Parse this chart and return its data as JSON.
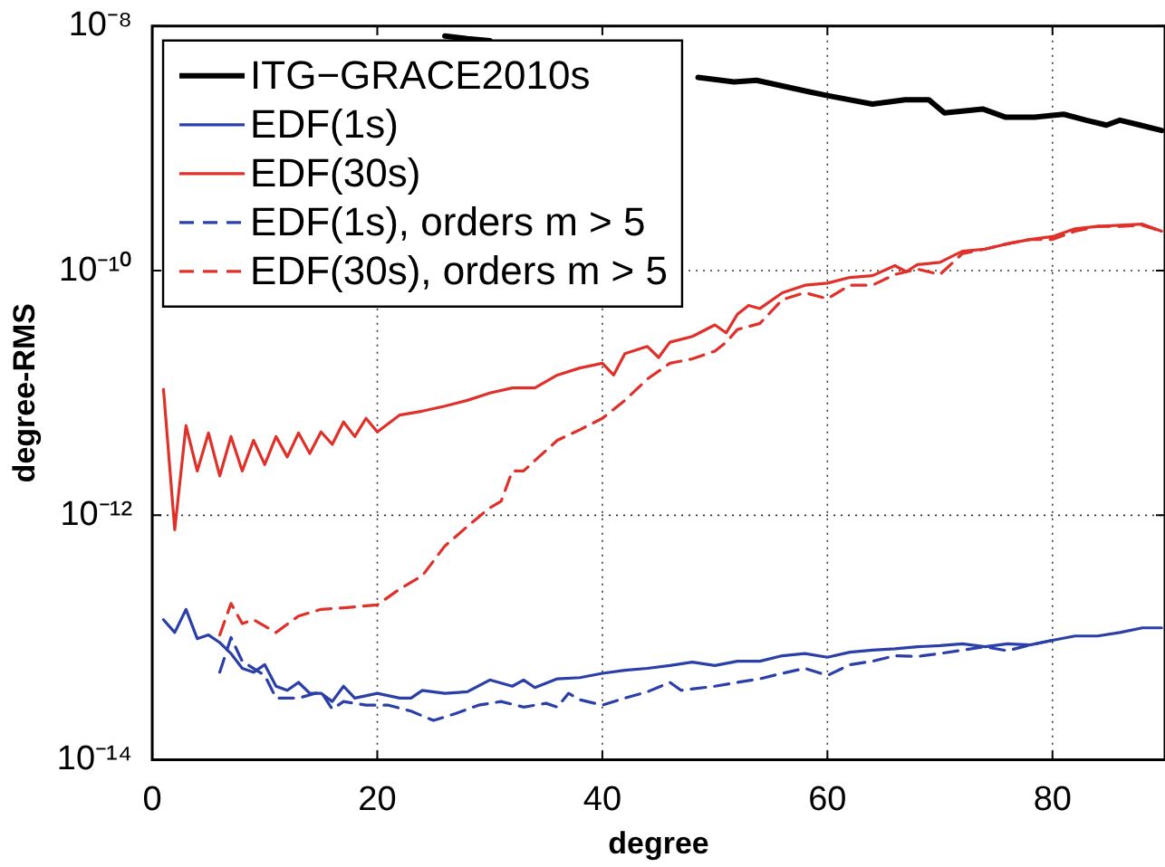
{
  "chart_data": {
    "type": "line",
    "xlabel": "degree",
    "ylabel": "degree-RMS",
    "log": "y",
    "grid": true,
    "legend": "top left",
    "marker": "none",
    "xlim": [
      0,
      90
    ],
    "xticks": [
      0,
      20,
      40,
      60,
      80
    ],
    "ylim": [
      1e-14,
      1e-08
    ],
    "yticks": [
      {
        "value": 1e-14,
        "label": "10⁻¹⁴"
      },
      {
        "value": 1e-12,
        "label": "10⁻¹²"
      },
      {
        "value": 1e-10,
        "label": "10⁻¹⁰"
      },
      {
        "value": 1e-08,
        "label": "10⁻⁸"
      }
    ],
    "series": [
      {
        "name": "ITG−GRACE2010s",
        "color": "#000000",
        "line_style": "solid",
        "x": [
          26,
          28,
          30,
          40,
          48.5,
          51.7,
          53.7,
          58.4,
          60,
          64,
          66.9,
          69,
          70.4,
          73.8,
          75.8,
          78.4,
          81,
          83,
          84.8,
          86,
          87.8,
          89.7
        ],
        "values": [
          8.3e-09,
          7.9e-09,
          7.6e-09,
          null,
          3.8e-09,
          3.5e-09,
          3.6e-09,
          2.9e-09,
          2.7e-09,
          2.3e-09,
          2.5e-09,
          2.5e-09,
          1.95e-09,
          2.1e-09,
          1.8e-09,
          1.8e-09,
          1.9e-09,
          1.7e-09,
          1.55e-09,
          1.7e-09,
          1.55e-09,
          1.4e-09
        ]
      },
      {
        "name": "EDF(1s)",
        "color": "#2b3fa8",
        "line_style": "solid",
        "x": [
          1,
          2,
          3,
          4,
          5,
          6,
          7,
          8,
          9,
          10,
          11,
          12,
          13,
          14,
          15,
          16,
          17,
          18,
          20,
          22,
          23,
          24,
          26,
          28,
          30,
          32,
          33,
          34,
          36,
          38,
          40,
          42,
          44,
          46,
          48,
          50,
          52,
          54,
          56,
          58,
          60,
          62,
          64,
          66,
          68,
          70,
          72,
          74,
          76,
          78,
          80,
          82,
          84,
          86,
          88,
          89.7
        ],
        "values": [
          1.4e-13,
          1.1e-13,
          1.7e-13,
          9.8e-14,
          1.05e-13,
          9.1e-14,
          7.4e-14,
          5.6e-14,
          5.2e-14,
          6e-14,
          4e-14,
          3.7e-14,
          4.3e-14,
          3.5e-14,
          3.5e-14,
          3e-14,
          4e-14,
          3.2e-14,
          3.5e-14,
          3.2e-14,
          3.2e-14,
          3.7e-14,
          3.5e-14,
          3.6e-14,
          4.5e-14,
          4e-14,
          4.5e-14,
          3.9e-14,
          4.6e-14,
          4.7e-14,
          5.1e-14,
          5.4e-14,
          5.6e-14,
          5.9e-14,
          6.3e-14,
          5.9e-14,
          6.4e-14,
          6.4e-14,
          7.1e-14,
          7.4e-14,
          6.9e-14,
          7.6e-14,
          7.9e-14,
          8.1e-14,
          8.4e-14,
          8.6e-14,
          8.9e-14,
          8.4e-14,
          8.9e-14,
          8.7e-14,
          9.5e-14,
          1.03e-13,
          1.03e-13,
          1.1e-13,
          1.2e-13,
          1.2e-13
        ]
      },
      {
        "name": "EDF(30s)",
        "color": "#e0302a",
        "line_style": "solid",
        "x": [
          1,
          2,
          3,
          4,
          5,
          6,
          7,
          8,
          9,
          10,
          11,
          12,
          13,
          14,
          15,
          16,
          17,
          18,
          19,
          20,
          22,
          24,
          26,
          28,
          30,
          32,
          34,
          36,
          38,
          40,
          41,
          42,
          44,
          45,
          46,
          48,
          50,
          51,
          52,
          53,
          54,
          56,
          58,
          60,
          62,
          64,
          66,
          67,
          68,
          70,
          71,
          72,
          74,
          76,
          78,
          80,
          82,
          84,
          86,
          88,
          89.7
        ],
        "values": [
          1.07e-11,
          7.6e-13,
          5.4e-12,
          2.3e-12,
          4.7e-12,
          2.1e-12,
          4.4e-12,
          2.3e-12,
          4.1e-12,
          2.6e-12,
          4.4e-12,
          3e-12,
          4.7e-12,
          3.2e-12,
          4.8e-12,
          3.8e-12,
          5.8e-12,
          4.4e-12,
          6.2e-12,
          4.8e-12,
          6.6e-12,
          7.1e-12,
          7.8e-12,
          8.7e-12,
          1e-11,
          1.1e-11,
          1.1e-11,
          1.4e-11,
          1.6e-11,
          1.75e-11,
          1.4e-11,
          2.1e-11,
          2.4e-11,
          1.95e-11,
          2.6e-11,
          2.9e-11,
          3.6e-11,
          3.1e-11,
          4.4e-11,
          5.2e-11,
          4.9e-11,
          6.6e-11,
          7.6e-11,
          7.9e-11,
          8.8e-11,
          9.1e-11,
          1.1e-10,
          9.8e-11,
          1.12e-10,
          1.17e-10,
          1.3e-10,
          1.44e-10,
          1.5e-10,
          1.66e-10,
          1.8e-10,
          1.9e-10,
          2.2e-10,
          2.3e-10,
          2.35e-10,
          2.4e-10,
          2.1e-10
        ]
      },
      {
        "name": "EDF(1s), orders m > 5",
        "color": "#2b3fa8",
        "line_style": "dashed",
        "x": [
          6,
          7,
          8,
          10,
          11,
          13,
          15,
          16,
          17,
          19,
          21,
          23,
          25,
          27,
          29,
          31,
          33,
          35,
          36,
          37,
          38,
          40,
          42,
          44,
          46,
          47,
          50,
          52,
          54,
          56,
          58,
          60,
          62,
          64,
          66,
          68,
          70,
          72,
          74,
          76,
          78,
          80
        ],
        "values": [
          5.2e-14,
          1e-13,
          6.4e-14,
          4.9e-14,
          3.2e-14,
          3.2e-14,
          3.6e-14,
          2.6e-14,
          3e-14,
          2.8e-14,
          2.8e-14,
          2.5e-14,
          2.1e-14,
          2.4e-14,
          2.8e-14,
          3e-14,
          2.7e-14,
          2.9e-14,
          2.7e-14,
          3.5e-14,
          3.1e-14,
          2.8e-14,
          3.2e-14,
          3.6e-14,
          4.3e-14,
          3.7e-14,
          4e-14,
          4.3e-14,
          4.6e-14,
          5.1e-14,
          5.6e-14,
          4.9e-14,
          6e-14,
          6.4e-14,
          7.1e-14,
          7e-14,
          7.4e-14,
          7.9e-14,
          8.4e-14,
          7.8e-14,
          8.7e-14,
          9.5e-14
        ]
      },
      {
        "name": "EDF(30s), orders m > 5",
        "color": "#e0302a",
        "line_style": "dashed",
        "x": [
          6,
          7,
          8,
          9,
          11,
          13,
          15,
          17,
          20,
          22,
          24,
          26,
          28,
          30,
          31,
          32,
          33,
          34,
          36,
          38,
          40,
          42,
          44,
          46,
          48,
          50,
          51,
          52,
          54,
          56,
          58,
          60,
          62,
          64,
          66,
          68,
          70,
          72,
          74,
          76,
          78,
          80,
          82,
          84,
          86,
          88,
          89.7
        ],
        "values": [
          1.05e-13,
          1.9e-13,
          1.3e-13,
          1.4e-13,
          1.1e-13,
          1.5e-13,
          1.7e-13,
          1.75e-13,
          1.85e-13,
          2.5e-13,
          3.2e-13,
          5.6e-13,
          8.1e-13,
          1.15e-12,
          1.3e-12,
          2.3e-12,
          2.3e-12,
          2.8e-12,
          4.1e-12,
          5e-12,
          6.2e-12,
          8.7e-12,
          1.3e-11,
          1.75e-11,
          1.9e-11,
          2.2e-11,
          2.6e-11,
          3.3e-11,
          3.7e-11,
          5.8e-11,
          6.6e-11,
          5.9e-11,
          7.6e-11,
          7.6e-11,
          9.3e-11,
          1.03e-10,
          9.3e-11,
          1.38e-10,
          1.5e-10,
          1.66e-10,
          1.8e-10,
          1.8e-10,
          2.1e-10,
          2.3e-10,
          2.3e-10,
          2.35e-10,
          2.1e-10
        ]
      }
    ]
  }
}
